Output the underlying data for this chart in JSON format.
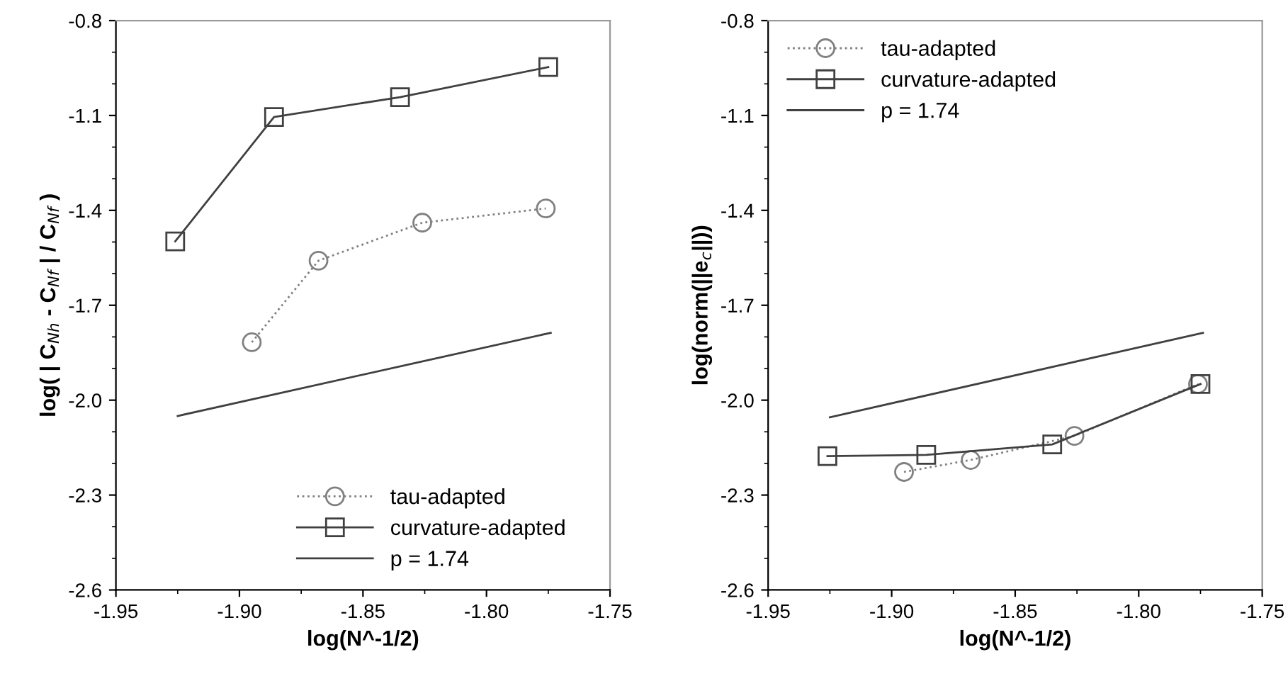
{
  "chart_data": [
    {
      "type": "line",
      "xlabel": "log(N^-1/2)",
      "ylabel": "log( | C$_{Nh}$ - C$_{Nf}$ | / C$_{Nf}$ )",
      "xlim": [
        -1.95,
        -1.75
      ],
      "xticks": [
        {
          "value": -1.95,
          "label": "-1.95"
        },
        {
          "value": -1.9,
          "label": "-1.90"
        },
        {
          "value": -1.85,
          "label": "-1.85"
        },
        {
          "value": -1.8,
          "label": "-1.80"
        },
        {
          "value": -1.75,
          "label": "-1.75"
        }
      ],
      "ylim": [
        -2.6,
        -0.8
      ],
      "yticks": [
        {
          "value": -2.6,
          "label": "-2.6"
        },
        {
          "value": -2.3,
          "label": "-2.3"
        },
        {
          "value": -2.0,
          "label": "-2.0"
        },
        {
          "value": -1.7,
          "label": "-1.7"
        },
        {
          "value": -1.4,
          "label": "-1.4"
        },
        {
          "value": -1.1,
          "label": "-1.1"
        },
        {
          "value": -0.8,
          "label": "-0.8"
        }
      ],
      "grid": false,
      "legend": "lower right",
      "series": [
        {
          "name": "tau-adapted",
          "color": "#808080",
          "marker": "circle",
          "line_style": "dotted",
          "x": [
            -1.895,
            -1.868,
            -1.826,
            -1.776
          ],
          "values": [
            -1.817,
            -1.559,
            -1.439,
            -1.394
          ]
        },
        {
          "name": "curvature-adapted",
          "color": "#404040",
          "marker": "square",
          "line_style": "solid",
          "x": [
            -1.926,
            -1.886,
            -1.835,
            -1.775
          ],
          "values": [
            -1.498,
            -1.105,
            -1.042,
            -0.947
          ]
        },
        {
          "name": "p = 1.74",
          "color": "#404040",
          "marker": "none",
          "line_style": "solid",
          "x": [
            -1.925,
            -1.774
          ],
          "values": [
            -2.05,
            -1.787
          ]
        }
      ]
    },
    {
      "type": "line",
      "xlabel": "log(N^-1/2)",
      "ylabel": "log(norm(||e$_{c}$||))",
      "xlim": [
        -1.95,
        -1.75
      ],
      "xticks": [
        {
          "value": -1.95,
          "label": "-1.95"
        },
        {
          "value": -1.9,
          "label": "-1.90"
        },
        {
          "value": -1.85,
          "label": "-1.85"
        },
        {
          "value": -1.8,
          "label": "-1.80"
        },
        {
          "value": -1.75,
          "label": "-1.75"
        }
      ],
      "ylim": [
        -2.6,
        -0.8
      ],
      "yticks": [
        {
          "value": -2.6,
          "label": "-2.6"
        },
        {
          "value": -2.3,
          "label": "-2.3"
        },
        {
          "value": -2.0,
          "label": "-2.0"
        },
        {
          "value": -1.7,
          "label": "-1.7"
        },
        {
          "value": -1.4,
          "label": "-1.4"
        },
        {
          "value": -1.1,
          "label": "-1.1"
        },
        {
          "value": -0.8,
          "label": "-0.8"
        }
      ],
      "grid": false,
      "legend": "upper left",
      "series": [
        {
          "name": "tau-adapted",
          "color": "#808080",
          "marker": "circle",
          "line_style": "dotted",
          "x": [
            -1.895,
            -1.868,
            -1.826,
            -1.776
          ],
          "values": [
            -2.227,
            -2.189,
            -2.113,
            -1.949
          ]
        },
        {
          "name": "curvature-adapted",
          "color": "#404040",
          "marker": "square",
          "line_style": "solid",
          "x": [
            -1.926,
            -1.886,
            -1.835,
            -1.775
          ],
          "values": [
            -2.177,
            -2.173,
            -2.14,
            -1.949
          ]
        },
        {
          "name": "p = 1.74",
          "color": "#404040",
          "marker": "none",
          "line_style": "solid",
          "x": [
            -1.925,
            -1.774
          ],
          "values": [
            -2.054,
            -1.787
          ]
        }
      ]
    }
  ]
}
